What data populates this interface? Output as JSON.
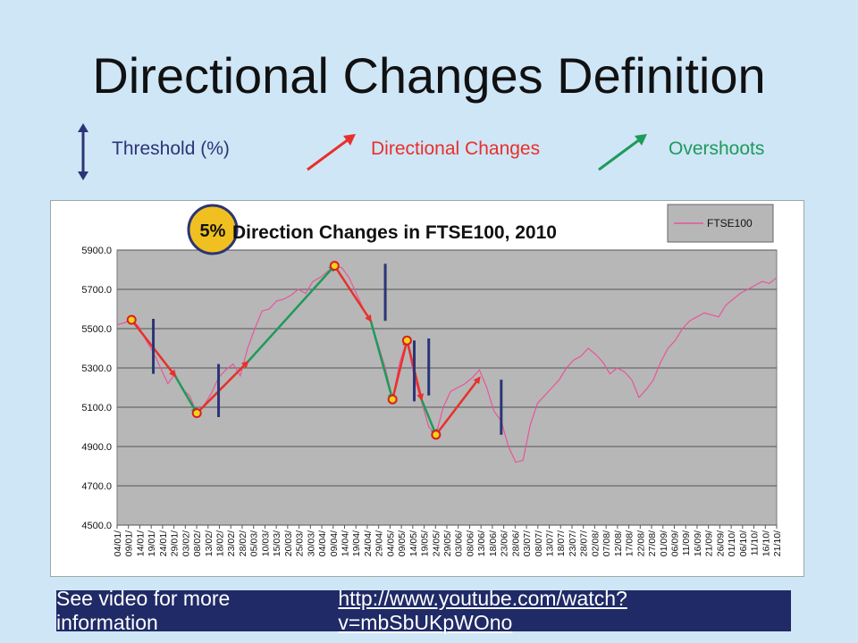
{
  "slide": {
    "title": "Directional Changes Definition",
    "legend": {
      "threshold": "Threshold (%)",
      "directional_changes": "Directional Changes",
      "overshoots": "Overshoots"
    },
    "footer_text": "See video for more information",
    "footer_link": "http://www.youtube.com/watch?v=mbSbUKpWOno"
  },
  "colors": {
    "background": "#cfe6f7",
    "threshold": "#2b3575",
    "directional_change": "#e8302a",
    "overshoot": "#1f9a5a",
    "price_line": "#e8559a",
    "plot_area": "#b7b7b7",
    "footer": "#1f2a66"
  },
  "chart_data": {
    "type": "line",
    "title": "Direction Changes in FTSE100, 2010",
    "threshold_badge": "5%",
    "legend": "FTSE100",
    "legend_position": "top-right",
    "grid": true,
    "ylim": [
      4500,
      5900
    ],
    "y_ticks": [
      "4500.0",
      "4700.0",
      "4900.0",
      "5100.0",
      "5300.0",
      "5500.0",
      "5700.0",
      "5900.0"
    ],
    "x_ticks": [
      "04/01/",
      "09/01/",
      "14/01/",
      "19/01/",
      "24/01/",
      "29/01/",
      "03/02/",
      "08/02/",
      "13/02/",
      "18/02/",
      "23/02/",
      "28/02/",
      "05/03/",
      "10/03/",
      "15/03/",
      "20/03/",
      "25/03/",
      "30/03/",
      "04/04/",
      "09/04/",
      "14/04/",
      "19/04/",
      "24/04/",
      "29/04/",
      "04/05/",
      "09/05/",
      "14/05/",
      "19/05/",
      "24/05/",
      "29/05/",
      "03/06/",
      "08/06/",
      "13/06/",
      "18/06/",
      "23/06/",
      "28/06/",
      "03/07/",
      "08/07/",
      "13/07/",
      "18/07/",
      "23/07/",
      "28/07/",
      "02/08/",
      "07/08/",
      "12/08/",
      "17/08/",
      "22/08/",
      "27/08/",
      "01/09/",
      "06/09/",
      "11/09/",
      "16/09/",
      "21/09/",
      "26/09/",
      "01/10/",
      "06/10/",
      "11/10/",
      "16/10/",
      "21/10/"
    ],
    "series": [
      {
        "name": "FTSE100",
        "points": [
          [
            0,
            5520
          ],
          [
            1,
            5530
          ],
          [
            2,
            5545
          ],
          [
            3,
            5510
          ],
          [
            4,
            5440
          ],
          [
            5,
            5380
          ],
          [
            6,
            5300
          ],
          [
            7,
            5220
          ],
          [
            8,
            5270
          ],
          [
            9,
            5190
          ],
          [
            10,
            5160
          ],
          [
            11,
            5070
          ],
          [
            12,
            5110
          ],
          [
            13,
            5170
          ],
          [
            14,
            5250
          ],
          [
            15,
            5290
          ],
          [
            16,
            5320
          ],
          [
            17,
            5260
          ],
          [
            18,
            5400
          ],
          [
            19,
            5500
          ],
          [
            20,
            5590
          ],
          [
            21,
            5600
          ],
          [
            22,
            5640
          ],
          [
            23,
            5650
          ],
          [
            24,
            5670
          ],
          [
            25,
            5700
          ],
          [
            26,
            5680
          ],
          [
            27,
            5740
          ],
          [
            28,
            5760
          ],
          [
            29,
            5790
          ],
          [
            30,
            5820
          ],
          [
            31,
            5810
          ],
          [
            32,
            5760
          ],
          [
            33,
            5680
          ],
          [
            34,
            5600
          ],
          [
            35,
            5540
          ],
          [
            36,
            5420
          ],
          [
            37,
            5300
          ],
          [
            38,
            5140
          ],
          [
            39,
            5330
          ],
          [
            40,
            5440
          ],
          [
            41,
            5250
          ],
          [
            42,
            5130
          ],
          [
            43,
            5000
          ],
          [
            44,
            4960
          ],
          [
            45,
            5100
          ],
          [
            46,
            5180
          ],
          [
            47,
            5200
          ],
          [
            48,
            5220
          ],
          [
            49,
            5250
          ],
          [
            50,
            5290
          ],
          [
            51,
            5200
          ],
          [
            52,
            5080
          ],
          [
            53,
            5030
          ],
          [
            54,
            4900
          ],
          [
            55,
            4820
          ],
          [
            56,
            4830
          ],
          [
            57,
            5010
          ],
          [
            58,
            5120
          ],
          [
            59,
            5160
          ],
          [
            60,
            5200
          ],
          [
            61,
            5240
          ],
          [
            62,
            5300
          ],
          [
            63,
            5340
          ],
          [
            64,
            5360
          ],
          [
            65,
            5400
          ],
          [
            66,
            5370
          ],
          [
            67,
            5330
          ],
          [
            68,
            5270
          ],
          [
            69,
            5300
          ],
          [
            70,
            5280
          ],
          [
            71,
            5240
          ],
          [
            72,
            5150
          ],
          [
            73,
            5190
          ],
          [
            74,
            5240
          ],
          [
            75,
            5330
          ],
          [
            76,
            5400
          ],
          [
            77,
            5440
          ],
          [
            78,
            5500
          ],
          [
            79,
            5540
          ],
          [
            80,
            5560
          ],
          [
            81,
            5580
          ],
          [
            82,
            5570
          ],
          [
            83,
            5560
          ],
          [
            84,
            5620
          ],
          [
            85,
            5650
          ],
          [
            86,
            5680
          ],
          [
            87,
            5700
          ],
          [
            88,
            5720
          ],
          [
            89,
            5740
          ],
          [
            90,
            5730
          ],
          [
            91,
            5760
          ]
        ]
      }
    ],
    "directional_changes": [
      [
        2,
        5545,
        8,
        5260
      ],
      [
        11,
        5070,
        18,
        5330
      ],
      [
        30,
        5820,
        35,
        5540
      ],
      [
        38,
        5140,
        40,
        5440
      ],
      [
        40,
        5440,
        42,
        5140
      ],
      [
        44,
        4960,
        50,
        5250
      ]
    ],
    "overshoots": [
      [
        8,
        5260,
        11,
        5070
      ],
      [
        18,
        5330,
        30,
        5820
      ],
      [
        35,
        5540,
        38,
        5140
      ],
      [
        42,
        5140,
        44,
        4960
      ]
    ],
    "extrema": [
      [
        2,
        5545
      ],
      [
        11,
        5070
      ],
      [
        30,
        5820
      ],
      [
        38,
        5140
      ],
      [
        40,
        5440
      ],
      [
        44,
        4960
      ]
    ],
    "thresholds": [
      [
        5,
        5550,
        5270
      ],
      [
        14,
        5320,
        5050
      ],
      [
        37,
        5830,
        5540
      ],
      [
        41,
        5440,
        5130
      ],
      [
        43,
        5450,
        5160
      ],
      [
        53,
        5240,
        4960
      ]
    ]
  }
}
